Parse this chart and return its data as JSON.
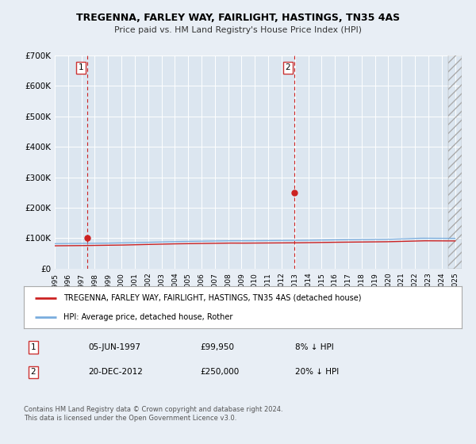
{
  "title": "TREGENNA, FARLEY WAY, FAIRLIGHT, HASTINGS, TN35 4AS",
  "subtitle": "Price paid vs. HM Land Registry's House Price Index (HPI)",
  "ylim": [
    0,
    700000
  ],
  "yticks": [
    0,
    100000,
    200000,
    300000,
    400000,
    500000,
    600000,
    700000
  ],
  "ytick_labels": [
    "£0",
    "£100K",
    "£200K",
    "£300K",
    "£400K",
    "£500K",
    "£600K",
    "£700K"
  ],
  "xlim_start": 1995.0,
  "xlim_end": 2025.5,
  "xticks": [
    1995,
    1996,
    1997,
    1998,
    1999,
    2000,
    2001,
    2002,
    2003,
    2004,
    2005,
    2006,
    2007,
    2008,
    2009,
    2010,
    2011,
    2012,
    2013,
    2014,
    2015,
    2016,
    2017,
    2018,
    2019,
    2020,
    2021,
    2022,
    2023,
    2024,
    2025
  ],
  "hpi_color": "#7aadde",
  "price_color": "#cc2222",
  "bg_color": "#e8eef5",
  "plot_bg": "#dce6f0",
  "grid_color": "#ffffff",
  "hatch_start": 2024.5,
  "marker1_date": 1997.44,
  "marker1_price": 99950,
  "marker2_date": 2012.97,
  "marker2_price": 250000,
  "legend_label_price": "TREGENNA, FARLEY WAY, FAIRLIGHT, HASTINGS, TN35 4AS (detached house)",
  "legend_label_hpi": "HPI: Average price, detached house, Rother",
  "footnote1_date": "05-JUN-1997",
  "footnote1_price": "£99,950",
  "footnote1_pct": "8% ↓ HPI",
  "footnote2_date": "20-DEC-2012",
  "footnote2_price": "£250,000",
  "footnote2_pct": "20% ↓ HPI",
  "copyright_text": "Contains HM Land Registry data © Crown copyright and database right 2024.\nThis data is licensed under the Open Government Licence v3.0."
}
